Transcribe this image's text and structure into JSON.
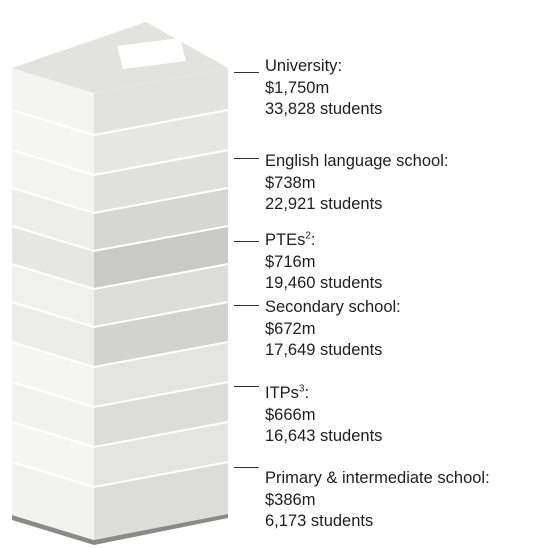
{
  "categories": [
    {
      "name": "University",
      "footnote": "",
      "suffix": ":",
      "value": "$1,750m",
      "students": "33,828 students"
    },
    {
      "name": "English language school",
      "footnote": "",
      "suffix": ":",
      "value": "$738m",
      "students": "22,921 students"
    },
    {
      "name": "PTEs",
      "footnote": "2",
      "suffix": ":",
      "value": "$716m",
      "students": "19,460 students"
    },
    {
      "name": "Secondary school",
      "footnote": "",
      "suffix": ":",
      "value": "$672m",
      "students": "17,649 students"
    },
    {
      "name": "ITPs",
      "footnote": "3",
      "suffix": ":",
      "value": "$666m",
      "students": "16,643 students"
    },
    {
      "name": "Primary & intermediate school",
      "footnote": "",
      "suffix": ":",
      "value": "$386m",
      "students": "6,173 students"
    }
  ],
  "colors": {
    "top_face": "#e2e2e0",
    "top_label": "#ffffff",
    "slab_light": "#f2f2f0",
    "slab_mid": "#dcdcda",
    "slab_dark": "#c9c9c7",
    "base_shadow": "#8a8a8a",
    "leader": "#333333",
    "text": "#1e1e1e"
  }
}
